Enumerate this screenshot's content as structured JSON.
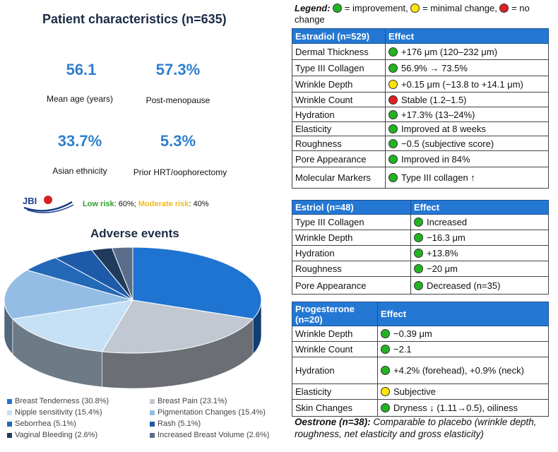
{
  "patient": {
    "title": "Patient characteristics (n=635)",
    "stats": [
      {
        "value": "56.1",
        "label": "Mean age (years)"
      },
      {
        "value": "57.3%",
        "label": "Post-menopause"
      },
      {
        "value": "33.7%",
        "label": "Asian ethnicity"
      },
      {
        "value": "5.3%",
        "label": "Prior HRT/oophorectomy"
      }
    ],
    "logo_text": "JBI",
    "risk": {
      "low_label": "Low risk",
      "low_value": ": 60%; ",
      "mod_label": "Moderate risk",
      "mod_value": ": 40%"
    }
  },
  "adverse": {
    "title": "Adverse events",
    "legend": [
      {
        "label": "Breast Tenderness (30.8%)",
        "color": "#1f73d1"
      },
      {
        "label": "Breast Pain (23.1%)",
        "color": "#c2c8d2"
      },
      {
        "label": "Nipple sensitivity (15.4%)",
        "color": "#c6e0f5"
      },
      {
        "label": "Pigmentation Changes (15.4%)",
        "color": "#93bde4"
      },
      {
        "label": "Seborrhea (5.1%)",
        "color": "#2468b8"
      },
      {
        "label": "Rash (5.1%)",
        "color": "#1d5aa8"
      },
      {
        "label": "Vaginal Bleeding (2.6%)",
        "color": "#203a5c"
      },
      {
        "label": "Increased Breast Volume (2.6%)",
        "color": "#5a6e8c"
      }
    ]
  },
  "chart_data": {
    "type": "pie",
    "title": "Adverse events",
    "categories": [
      "Breast Tenderness",
      "Breast Pain",
      "Nipple sensitivity",
      "Pigmentation Changes",
      "Seborrhea",
      "Rash",
      "Vaginal Bleeding",
      "Increased Breast Volume"
    ],
    "values": [
      30.8,
      23.1,
      15.4,
      15.4,
      5.1,
      5.1,
      2.6,
      2.6
    ],
    "legend": "bottom"
  },
  "legend_top": {
    "title": "Legend:",
    "improvement": " = improvement, ",
    "minimal": " = minimal change, ",
    "nochange": " = no change"
  },
  "tables": {
    "estradiol": {
      "header": [
        "Estradiol (n=529)",
        "Effect"
      ],
      "rows": [
        {
          "name": "Dermal Thickness",
          "dot": "g",
          "effect": "+176 μm (120–232 μm)"
        },
        {
          "name": "Type III Collagen",
          "dot": "g",
          "effect": "56.9% → 73.5%"
        },
        {
          "name": "Wrinkle Depth",
          "dot": "y",
          "effect": "+0.15 μm (−13.8 to +14.1 μm)"
        },
        {
          "name": "Wrinkle Count",
          "dot": "r",
          "effect": "Stable (1.2–1.5)"
        },
        {
          "name": "Hydration",
          "dot": "g",
          "effect": "+17.3% (13–24%)"
        },
        {
          "name": "Elasticity",
          "dot": "g",
          "effect": "Improved at 8 weeks"
        },
        {
          "name": "Roughness",
          "dot": "g",
          "effect": "−0.5 (subjective score)"
        },
        {
          "name": "Pore Appearance",
          "dot": "g",
          "effect": "Improved in 84%"
        },
        {
          "name": "Molecular Markers",
          "dot": "g",
          "effect": "Type III collagen ↑"
        }
      ]
    },
    "estriol": {
      "header": [
        "Estriol (n=48)",
        "Effect"
      ],
      "rows": [
        {
          "name": "Type III Collagen",
          "dot": "g",
          "effect": "Increased"
        },
        {
          "name": "Wrinkle Depth",
          "dot": "g",
          "effect": "−16.3 μm"
        },
        {
          "name": "Hydration",
          "dot": "g",
          "effect": "+13.8%"
        },
        {
          "name": "Roughness",
          "dot": "g",
          "effect": "−20 μm"
        },
        {
          "name": "Pore Appearance",
          "dot": "g",
          "effect": "Decreased (n=35)"
        }
      ]
    },
    "progesterone": {
      "header": [
        "Progesterone (n=20)",
        "Effect"
      ],
      "rows": [
        {
          "name": "Wrinkle Depth",
          "dot": "g",
          "effect": "−0.39 μm"
        },
        {
          "name": "Wrinkle Count",
          "dot": "g",
          "effect": "−2.1"
        },
        {
          "name": "Hydration",
          "dot": "g",
          "effect": "+4.2% (forehead), +0.9% (neck)"
        },
        {
          "name": "Elasticity",
          "dot": "y",
          "effect": "Subjective"
        },
        {
          "name": "Skin Changes",
          "dot": "g",
          "effect": "Dryness ↓ (1.11→0.5), oiliness"
        }
      ]
    }
  },
  "oestrone": {
    "title": "Oestrone (n=38):",
    "text": " Comparable to placebo (wrinkle depth, roughness, net elasticity and gross elasticity)"
  }
}
